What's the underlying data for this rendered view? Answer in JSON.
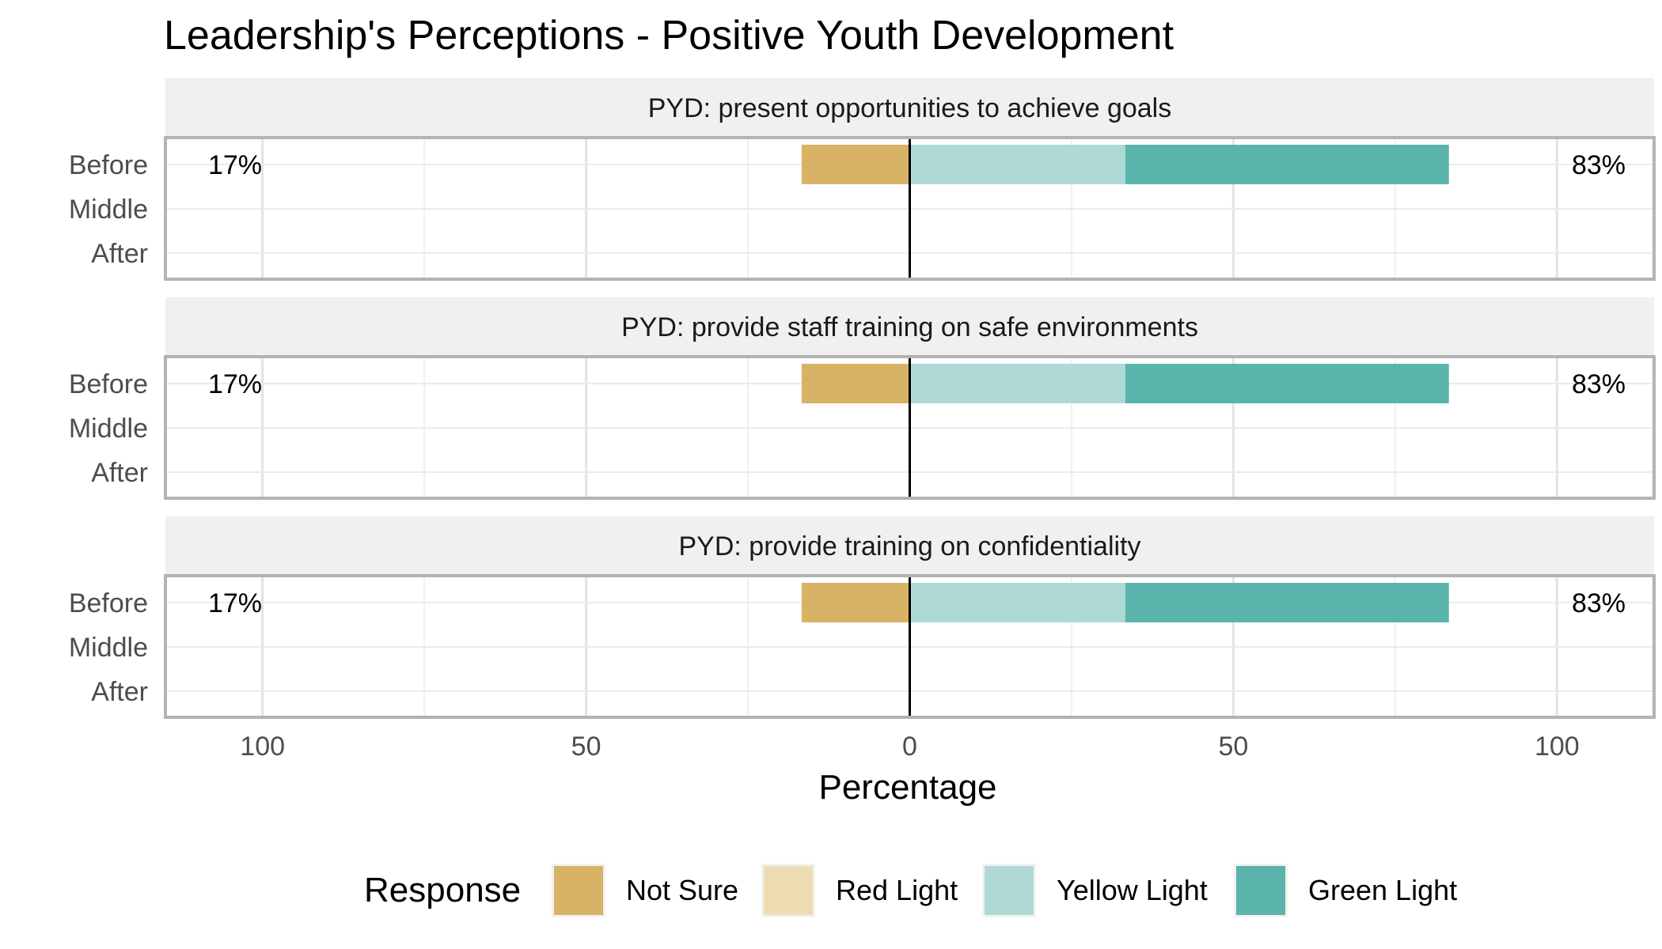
{
  "chart_data": {
    "type": "bar",
    "orientation": "horizontal-diverging",
    "title": "Leadership's Perceptions - Positive Youth Development",
    "xlabel": "Percentage",
    "xlim": [
      -115,
      115
    ],
    "x_ticks": [
      {
        "value": -100,
        "label": "100"
      },
      {
        "value": -50,
        "label": "50"
      },
      {
        "value": 0,
        "label": "0"
      },
      {
        "value": 50,
        "label": "50"
      },
      {
        "value": 100,
        "label": "100"
      }
    ],
    "categories": [
      "Before",
      "Middle",
      "After"
    ],
    "legend": {
      "title": "Response",
      "position": "bottom",
      "entries": [
        {
          "name": "Not Sure",
          "color": "#D8B365"
        },
        {
          "name": "Red Light",
          "color": "#EEDCB3"
        },
        {
          "name": "Yellow Light",
          "color": "#AED9D4"
        },
        {
          "name": "Green Light",
          "color": "#5AB4AC"
        }
      ]
    },
    "panels": [
      {
        "label": "PYD: present opportunities to achieve goals",
        "rows": [
          {
            "category": "Before",
            "not_sure": 16.7,
            "red_light": 0,
            "yellow_light": 33.3,
            "green_light": 50,
            "left_label": "17%",
            "right_label": "83%"
          },
          {
            "category": "Middle",
            "not_sure": 0,
            "red_light": 0,
            "yellow_light": 0,
            "green_light": 0,
            "left_label": "",
            "right_label": ""
          },
          {
            "category": "After",
            "not_sure": 0,
            "red_light": 0,
            "yellow_light": 0,
            "green_light": 0,
            "left_label": "",
            "right_label": ""
          }
        ]
      },
      {
        "label": "PYD: provide staff training on safe environments",
        "rows": [
          {
            "category": "Before",
            "not_sure": 16.7,
            "red_light": 0,
            "yellow_light": 33.3,
            "green_light": 50,
            "left_label": "17%",
            "right_label": "83%"
          },
          {
            "category": "Middle",
            "not_sure": 0,
            "red_light": 0,
            "yellow_light": 0,
            "green_light": 0,
            "left_label": "",
            "right_label": ""
          },
          {
            "category": "After",
            "not_sure": 0,
            "red_light": 0,
            "yellow_light": 0,
            "green_light": 0,
            "left_label": "",
            "right_label": ""
          }
        ]
      },
      {
        "label": "PYD: provide training on confidentiality",
        "rows": [
          {
            "category": "Before",
            "not_sure": 16.7,
            "red_light": 0,
            "yellow_light": 33.3,
            "green_light": 50,
            "left_label": "17%",
            "right_label": "83%"
          },
          {
            "category": "Middle",
            "not_sure": 0,
            "red_light": 0,
            "yellow_light": 0,
            "green_light": 0,
            "left_label": "",
            "right_label": ""
          },
          {
            "category": "After",
            "not_sure": 0,
            "red_light": 0,
            "yellow_light": 0,
            "green_light": 0,
            "left_label": "",
            "right_label": ""
          }
        ]
      }
    ]
  }
}
